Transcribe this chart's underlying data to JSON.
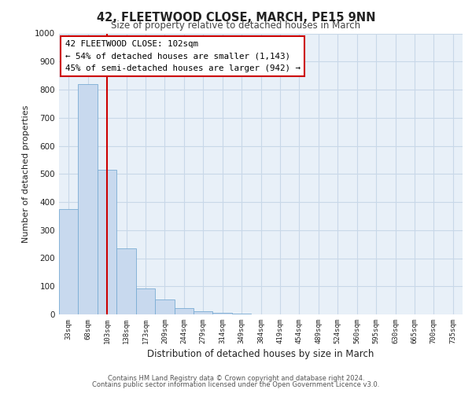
{
  "title": "42, FLEETWOOD CLOSE, MARCH, PE15 9NN",
  "subtitle": "Size of property relative to detached houses in March",
  "xlabel": "Distribution of detached houses by size in March",
  "ylabel": "Number of detached properties",
  "bar_labels": [
    "33sqm",
    "68sqm",
    "103sqm",
    "138sqm",
    "173sqm",
    "209sqm",
    "244sqm",
    "279sqm",
    "314sqm",
    "349sqm",
    "384sqm",
    "419sqm",
    "454sqm",
    "489sqm",
    "524sqm",
    "560sqm",
    "595sqm",
    "630sqm",
    "665sqm",
    "700sqm",
    "735sqm"
  ],
  "bar_values": [
    375,
    820,
    515,
    235,
    92,
    52,
    22,
    12,
    5,
    3,
    0,
    0,
    0,
    0,
    0,
    0,
    0,
    0,
    0,
    0,
    0
  ],
  "bar_color": "#c8d9ee",
  "bar_edge_color": "#7aacd4",
  "vline_x": 2,
  "vline_color": "#cc0000",
  "ylim": [
    0,
    1000
  ],
  "yticks": [
    0,
    100,
    200,
    300,
    400,
    500,
    600,
    700,
    800,
    900,
    1000
  ],
  "annotation_title": "42 FLEETWOOD CLOSE: 102sqm",
  "annotation_line1": "← 54% of detached houses are smaller (1,143)",
  "annotation_line2": "45% of semi-detached houses are larger (942) →",
  "annotation_box_color": "#ffffff",
  "annotation_box_edge": "#cc0000",
  "grid_color": "#c8d8e8",
  "background_color": "#e8f0f8",
  "footer_line1": "Contains HM Land Registry data © Crown copyright and database right 2024.",
  "footer_line2": "Contains public sector information licensed under the Open Government Licence v3.0."
}
